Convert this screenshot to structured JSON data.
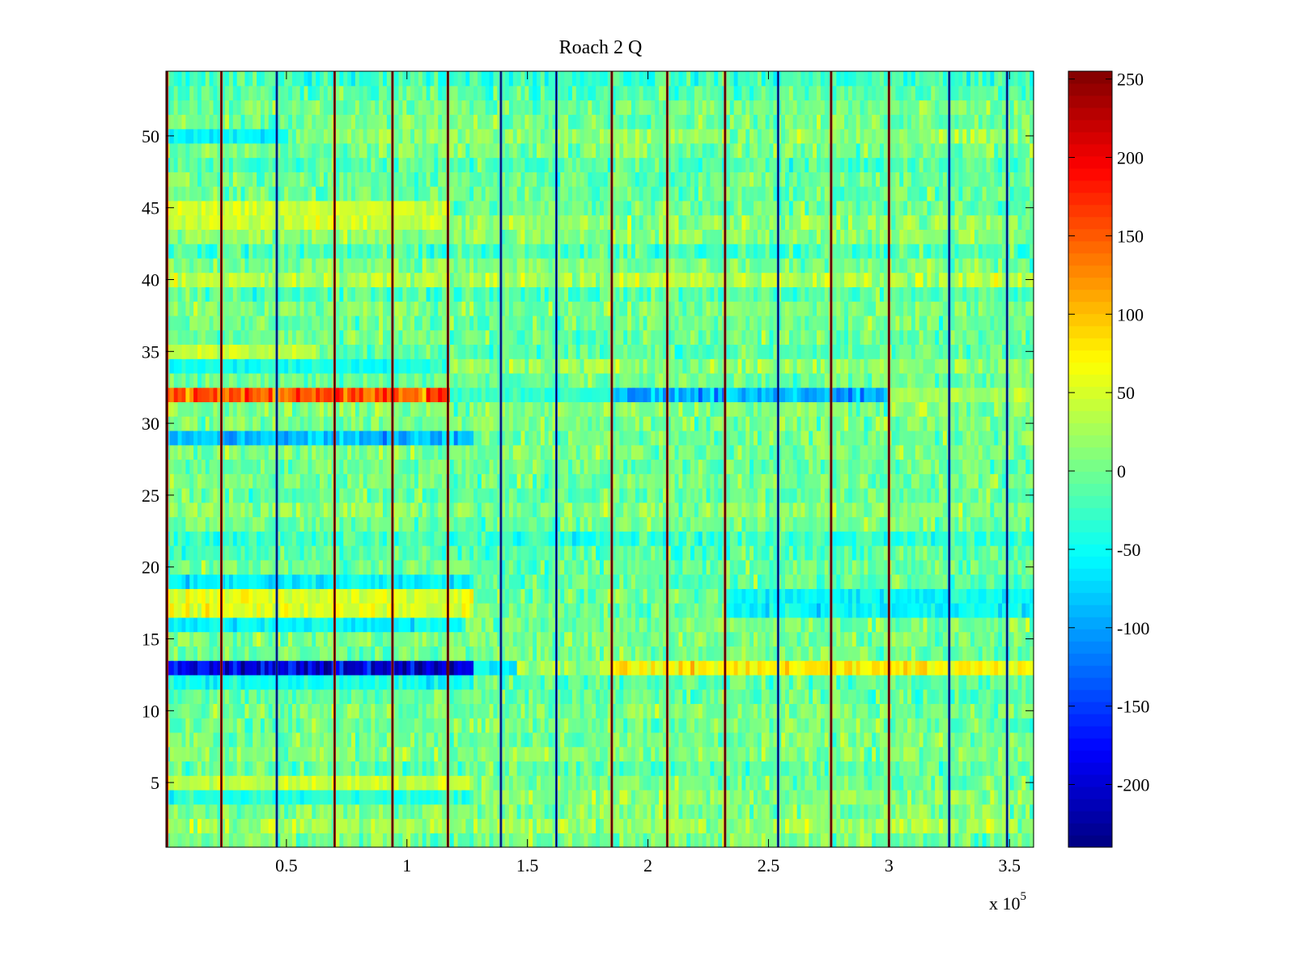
{
  "chart_data": {
    "type": "heatmap",
    "title": "Roach 2 Q",
    "xlabel": "",
    "ylabel": "",
    "x_multiplier_label": "x 10",
    "x_multiplier_exponent": "5",
    "xlim": [
      0,
      360000
    ],
    "ylim": [
      0.5,
      54.5
    ],
    "x_ticks": [
      {
        "value": 50000,
        "label": "0.5"
      },
      {
        "value": 100000,
        "label": "1"
      },
      {
        "value": 150000,
        "label": "1.5"
      },
      {
        "value": 200000,
        "label": "2"
      },
      {
        "value": 250000,
        "label": "2.5"
      },
      {
        "value": 300000,
        "label": "3"
      },
      {
        "value": 350000,
        "label": "3.5"
      }
    ],
    "y_ticks": [
      {
        "value": 5,
        "label": "5"
      },
      {
        "value": 10,
        "label": "10"
      },
      {
        "value": 15,
        "label": "15"
      },
      {
        "value": 20,
        "label": "20"
      },
      {
        "value": 25,
        "label": "25"
      },
      {
        "value": 30,
        "label": "30"
      },
      {
        "value": 35,
        "label": "35"
      },
      {
        "value": 40,
        "label": "40"
      },
      {
        "value": 45,
        "label": "45"
      },
      {
        "value": 50,
        "label": "50"
      }
    ],
    "colorbar": {
      "colormap": "jet",
      "clim": [
        -240,
        255
      ],
      "ticks": [
        {
          "value": 250,
          "label": "250"
        },
        {
          "value": 200,
          "label": "200"
        },
        {
          "value": 150,
          "label": "150"
        },
        {
          "value": 100,
          "label": "100"
        },
        {
          "value": 50,
          "label": "50"
        },
        {
          "value": 0,
          "label": "0"
        },
        {
          "value": -50,
          "label": "-50"
        },
        {
          "value": -100,
          "label": "-100"
        },
        {
          "value": -150,
          "label": "-150"
        },
        {
          "value": -200,
          "label": "-200"
        }
      ]
    },
    "rows": 54,
    "background_mean": 0,
    "row_bands": [
      {
        "rows": [
          32
        ],
        "x_range": [
          0,
          118000
        ],
        "value": 150
      },
      {
        "rows": [
          32
        ],
        "x_range": [
          118000,
          185000
        ],
        "value": -30
      },
      {
        "rows": [
          32
        ],
        "x_range": [
          185000,
          300000
        ],
        "value": -95
      },
      {
        "rows": [
          32
        ],
        "x_range": [
          300000,
          360000
        ],
        "value": 30
      },
      {
        "rows": [
          13
        ],
        "x_range": [
          0,
          128000
        ],
        "value": -200
      },
      {
        "rows": [
          13
        ],
        "x_range": [
          128000,
          145000
        ],
        "value": -60
      },
      {
        "rows": [
          13
        ],
        "x_range": [
          185000,
          360000
        ],
        "value": 75
      },
      {
        "rows": [
          29
        ],
        "x_range": [
          0,
          128000
        ],
        "value": -85
      },
      {
        "rows": [
          17,
          18
        ],
        "x_range": [
          0,
          128000
        ],
        "value": 55
      },
      {
        "rows": [
          17,
          18
        ],
        "x_range": [
          232000,
          360000
        ],
        "value": -55
      },
      {
        "rows": [
          19
        ],
        "x_range": [
          0,
          128000
        ],
        "value": -60
      },
      {
        "rows": [
          16
        ],
        "x_range": [
          0,
          125000
        ],
        "value": -55
      },
      {
        "rows": [
          12
        ],
        "x_range": [
          0,
          128000
        ],
        "value": -50
      },
      {
        "rows": [
          44,
          45
        ],
        "x_range": [
          0,
          118000
        ],
        "value": 45
      },
      {
        "rows": [
          34
        ],
        "x_range": [
          0,
          118000
        ],
        "value": -45
      },
      {
        "rows": [
          35
        ],
        "x_range": [
          0,
          62000
        ],
        "value": 45
      },
      {
        "rows": [
          50
        ],
        "x_range": [
          0,
          50000
        ],
        "value": -55
      },
      {
        "rows": [
          5
        ],
        "x_range": [
          0,
          128000
        ],
        "value": 40
      },
      {
        "rows": [
          4
        ],
        "x_range": [
          0,
          128000
        ],
        "value": -40
      }
    ],
    "vertical_lines": [
      {
        "x": 500,
        "value": 200
      },
      {
        "x": 23000,
        "value": 220
      },
      {
        "x": 46000,
        "value": -150
      },
      {
        "x": 70000,
        "value": 220
      },
      {
        "x": 94000,
        "value": 220
      },
      {
        "x": 117000,
        "value": 230
      },
      {
        "x": 139000,
        "value": -150
      },
      {
        "x": 162000,
        "value": -150
      },
      {
        "x": 185000,
        "value": 220
      },
      {
        "x": 208000,
        "value": 220
      },
      {
        "x": 232000,
        "value": 220
      },
      {
        "x": 254000,
        "value": -150
      },
      {
        "x": 276000,
        "value": 220
      },
      {
        "x": 300000,
        "value": 220
      },
      {
        "x": 325000,
        "value": -150
      },
      {
        "x": 349000,
        "value": -150
      }
    ]
  }
}
